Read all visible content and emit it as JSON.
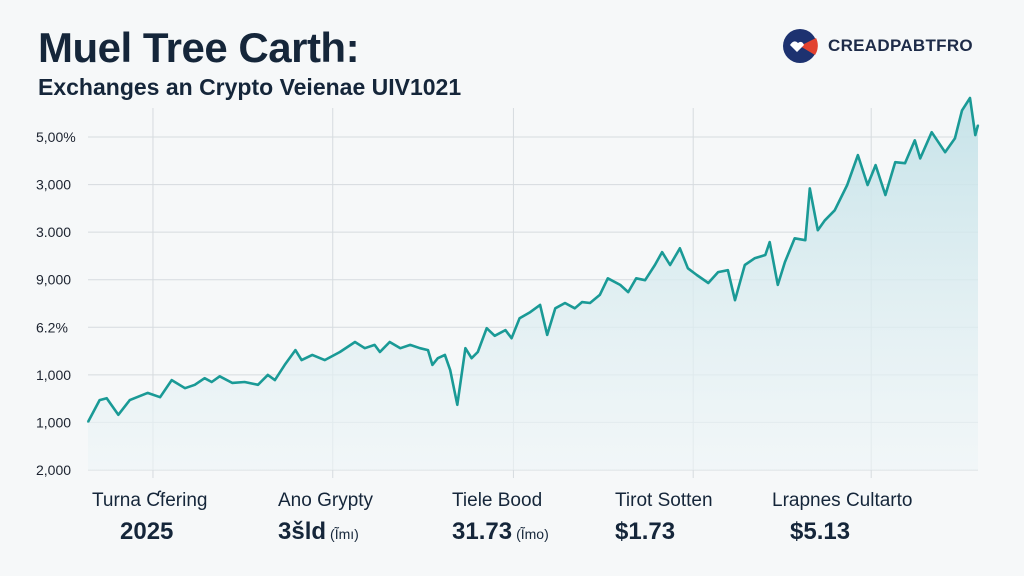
{
  "header": {
    "title": "Muel Tree Carth:",
    "subtitle": "Exchanges an Crypto Veienae UIV1021",
    "brand": "CREADPABTFRO"
  },
  "colors": {
    "line": "#1a9a96",
    "fill": "#cfe8ec",
    "grid": "#d6dbdf",
    "text": "#15263a",
    "brand_blue": "#1d3270",
    "brand_red": "#e2422f"
  },
  "chart_data": {
    "type": "area",
    "title": "Muel Tree Carth:",
    "xlabel": "",
    "ylabel": "",
    "xlim": [
      0,
      100
    ],
    "ylim": [
      0,
      7
    ],
    "grid": true,
    "y_tick_labels": [
      "5,00%",
      "3,000",
      "3.000",
      "9,000",
      "6.2%",
      "1,000",
      "1,000",
      "2,000"
    ],
    "x_gridlines": [
      7.3,
      27.5,
      47.8,
      68.0,
      88.0
    ],
    "points": [
      [
        0,
        1.01
      ],
      [
        1.3,
        1.47
      ],
      [
        2.1,
        1.51
      ],
      [
        3.4,
        1.16
      ],
      [
        4.7,
        1.47
      ],
      [
        6.7,
        1.62
      ],
      [
        8.1,
        1.53
      ],
      [
        9.4,
        1.89
      ],
      [
        10.9,
        1.72
      ],
      [
        12.0,
        1.79
      ],
      [
        13.1,
        1.93
      ],
      [
        13.9,
        1.85
      ],
      [
        14.8,
        1.97
      ],
      [
        16.2,
        1.83
      ],
      [
        17.6,
        1.85
      ],
      [
        19.1,
        1.79
      ],
      [
        20.2,
        2.0
      ],
      [
        21.0,
        1.89
      ],
      [
        22.1,
        2.21
      ],
      [
        23.3,
        2.52
      ],
      [
        24.0,
        2.31
      ],
      [
        25.2,
        2.42
      ],
      [
        26.6,
        2.31
      ],
      [
        28.3,
        2.48
      ],
      [
        30.0,
        2.69
      ],
      [
        31.1,
        2.56
      ],
      [
        32.2,
        2.63
      ],
      [
        32.8,
        2.48
      ],
      [
        33.9,
        2.69
      ],
      [
        35.1,
        2.56
      ],
      [
        36.2,
        2.63
      ],
      [
        37.3,
        2.56
      ],
      [
        38.2,
        2.52
      ],
      [
        38.7,
        2.21
      ],
      [
        39.3,
        2.35
      ],
      [
        40.1,
        2.42
      ],
      [
        40.7,
        2.1
      ],
      [
        41.5,
        1.37
      ],
      [
        42.4,
        2.56
      ],
      [
        43.1,
        2.35
      ],
      [
        43.8,
        2.48
      ],
      [
        44.8,
        2.98
      ],
      [
        45.7,
        2.82
      ],
      [
        46.9,
        2.94
      ],
      [
        47.6,
        2.77
      ],
      [
        48.5,
        3.19
      ],
      [
        49.7,
        3.32
      ],
      [
        50.8,
        3.47
      ],
      [
        51.6,
        2.84
      ],
      [
        52.5,
        3.4
      ],
      [
        53.6,
        3.51
      ],
      [
        54.7,
        3.4
      ],
      [
        55.5,
        3.53
      ],
      [
        56.4,
        3.51
      ],
      [
        57.5,
        3.68
      ],
      [
        58.4,
        4.03
      ],
      [
        59.8,
        3.89
      ],
      [
        60.7,
        3.74
      ],
      [
        61.6,
        4.03
      ],
      [
        62.6,
        3.99
      ],
      [
        63.7,
        4.31
      ],
      [
        64.5,
        4.58
      ],
      [
        65.4,
        4.31
      ],
      [
        66.5,
        4.66
      ],
      [
        67.4,
        4.24
      ],
      [
        68.4,
        4.1
      ],
      [
        69.7,
        3.93
      ],
      [
        70.8,
        4.16
      ],
      [
        71.9,
        4.2
      ],
      [
        72.7,
        3.57
      ],
      [
        73.8,
        4.31
      ],
      [
        74.9,
        4.45
      ],
      [
        76.1,
        4.52
      ],
      [
        76.6,
        4.79
      ],
      [
        77.5,
        3.89
      ],
      [
        78.3,
        4.37
      ],
      [
        79.4,
        4.87
      ],
      [
        80.6,
        4.83
      ],
      [
        81.1,
        5.92
      ],
      [
        82.0,
        5.04
      ],
      [
        82.8,
        5.25
      ],
      [
        83.9,
        5.46
      ],
      [
        85.3,
        5.99
      ],
      [
        86.5,
        6.62
      ],
      [
        87.6,
        5.99
      ],
      [
        88.5,
        6.41
      ],
      [
        89.6,
        5.78
      ],
      [
        90.7,
        6.47
      ],
      [
        91.8,
        6.45
      ],
      [
        92.9,
        6.93
      ],
      [
        93.5,
        6.55
      ],
      [
        94.8,
        7.1
      ],
      [
        96.3,
        6.68
      ],
      [
        97.4,
        6.97
      ],
      [
        98.2,
        7.56
      ],
      [
        99.1,
        7.82
      ],
      [
        99.7,
        7.04
      ],
      [
        100,
        7.25
      ]
    ]
  },
  "stats": [
    {
      "label": "Turna Ƈfering",
      "value": "2025",
      "unit": ""
    },
    {
      "label": "Ano Grypty",
      "value": "3šld",
      "unit": "(Ĩmı)"
    },
    {
      "label": "Tiele Bood",
      "value": "31.73",
      "unit": "(Ĩmo)"
    },
    {
      "label": "Tirot Sotten",
      "value": "$1.73",
      "unit": ""
    },
    {
      "label": "Lrapnes Cultarto",
      "value": "$5.13",
      "unit": ""
    }
  ]
}
